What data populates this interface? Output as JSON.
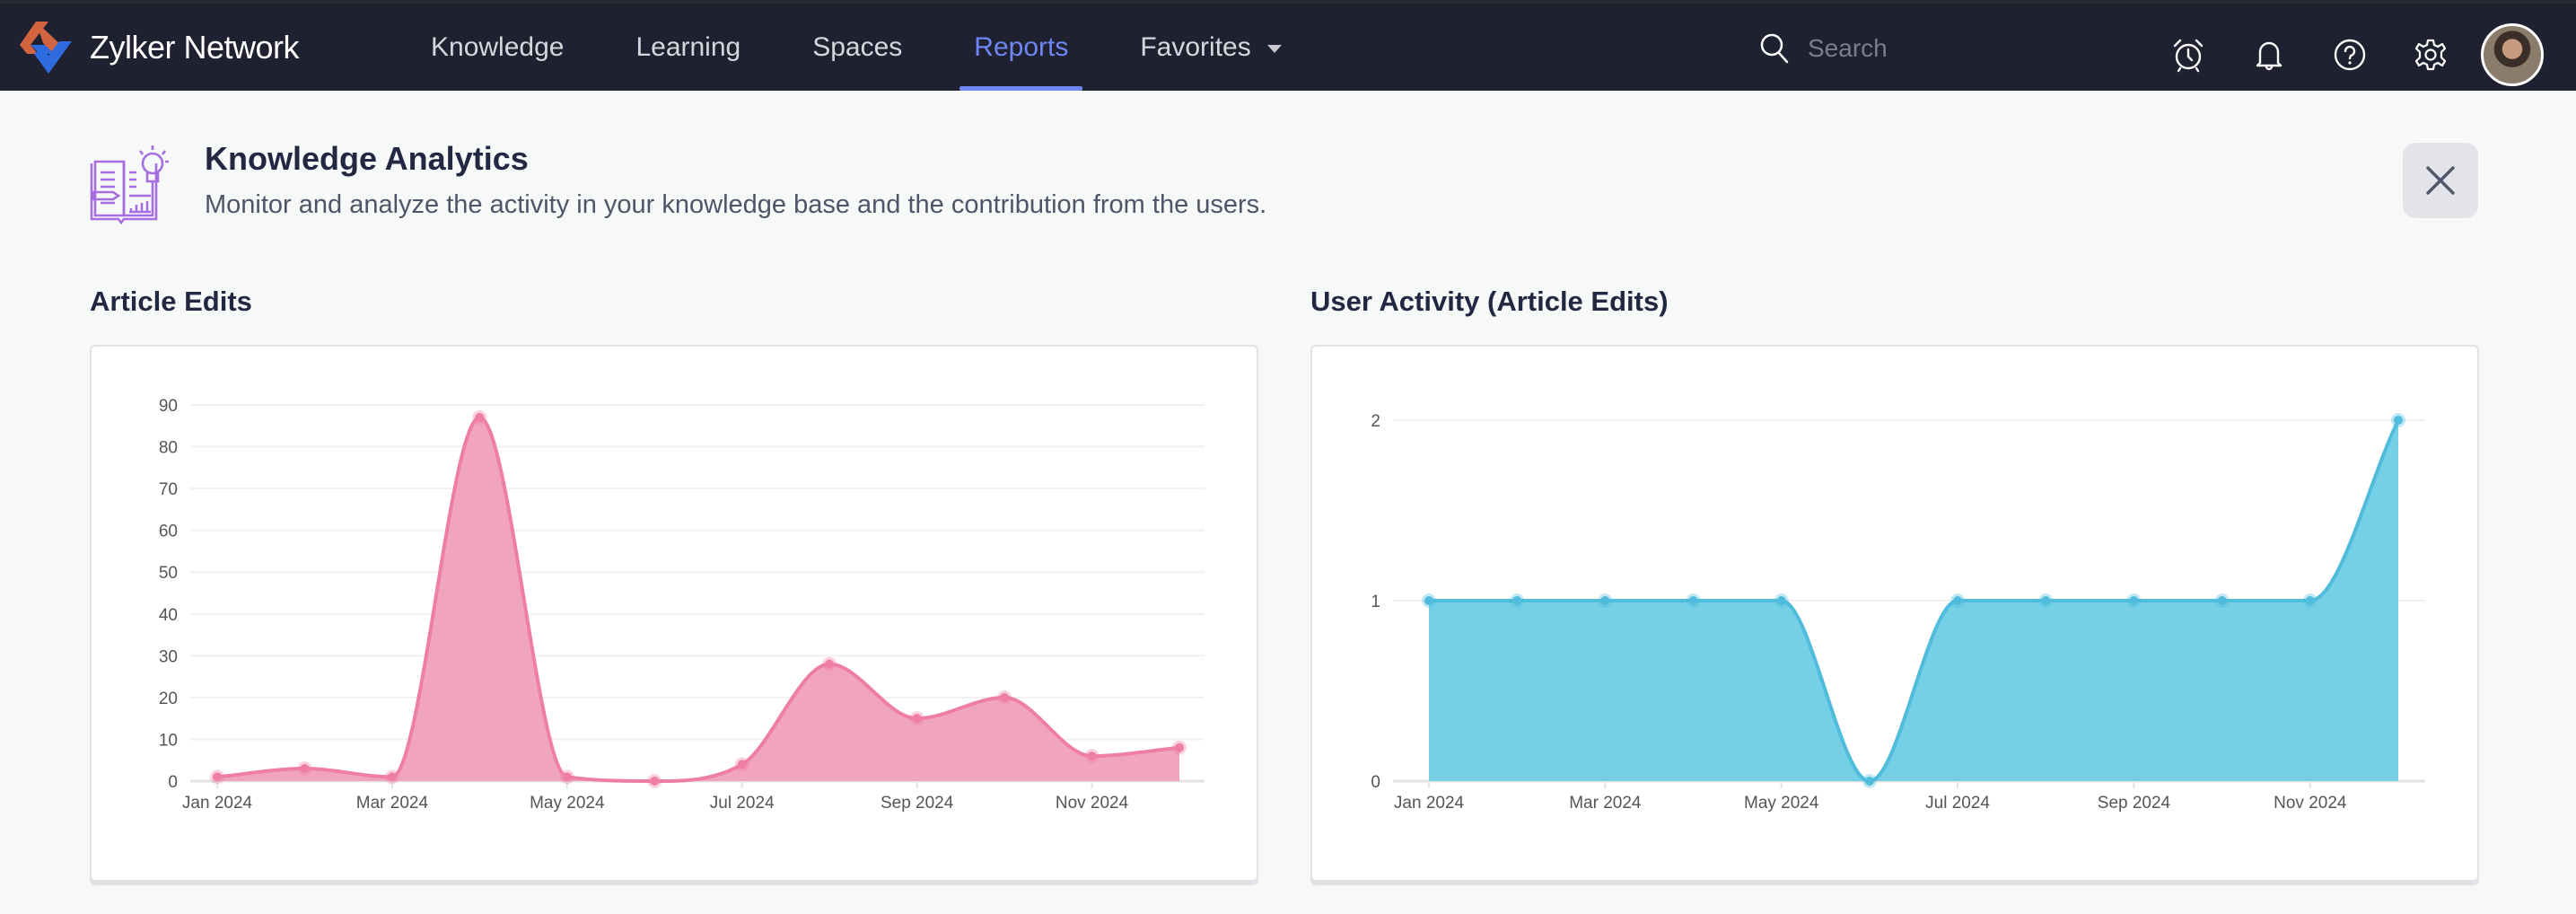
{
  "app": {
    "brand_name": "Zylker Network",
    "accent_color": "#6e87f3"
  },
  "nav": {
    "items": [
      {
        "label": "Knowledge",
        "active": false
      },
      {
        "label": "Learning",
        "active": false
      },
      {
        "label": "Spaces",
        "active": false
      },
      {
        "label": "Reports",
        "active": true
      },
      {
        "label": "Favorites",
        "active": false,
        "dropdown": true
      }
    ]
  },
  "search": {
    "placeholder": "Search",
    "value": ""
  },
  "header_icons": [
    "alarm-clock-icon",
    "bell-icon",
    "help-icon",
    "gear-icon",
    "avatar"
  ],
  "page": {
    "title": "Knowledge Analytics",
    "subtitle": "Monitor and analyze the activity in your knowledge base and the contribution from the users.",
    "close_icon": "close-icon"
  },
  "chart_data": [
    {
      "id": "article-edits",
      "type": "area",
      "title": "Article Edits",
      "xlabel": "",
      "ylabel": "",
      "color": "#ee7fa3",
      "fill": "#f1a5bd",
      "x": [
        "Jan 2024",
        "Feb 2024",
        "Mar 2024",
        "Apr 2024",
        "May 2024",
        "Jun 2024",
        "Jul 2024",
        "Aug 2024",
        "Sep 2024",
        "Oct 2024",
        "Nov 2024",
        "Dec 2024"
      ],
      "x_tick_labels": [
        "Jan 2024",
        "Mar 2024",
        "May 2024",
        "Jul 2024",
        "Sep 2024",
        "Nov 2024"
      ],
      "values": [
        1,
        3,
        1,
        87,
        1,
        0,
        4,
        28,
        15,
        20,
        6,
        8
      ],
      "ylim": [
        0,
        90
      ],
      "y_ticks": [
        0,
        10,
        20,
        30,
        40,
        50,
        60,
        70,
        80,
        90
      ],
      "grid": true,
      "legend": "none"
    },
    {
      "id": "user-activity",
      "type": "area",
      "title": "User Activity (Article Edits)",
      "xlabel": "",
      "ylabel": "",
      "color": "#4fbcdc",
      "fill": "#76d0e5",
      "x": [
        "Jan 2024",
        "Feb 2024",
        "Mar 2024",
        "Apr 2024",
        "May 2024",
        "Jun 2024",
        "Jul 2024",
        "Aug 2024",
        "Sep 2024",
        "Oct 2024",
        "Nov 2024",
        "Dec 2024"
      ],
      "x_tick_labels": [
        "Jan 2024",
        "Mar 2024",
        "May 2024",
        "Jul 2024",
        "Sep 2024",
        "Nov 2024"
      ],
      "values": [
        1,
        1,
        1,
        1,
        1,
        0,
        1,
        1,
        1,
        1,
        1,
        2
      ],
      "ylim": [
        0,
        2
      ],
      "y_ticks": [
        0,
        1,
        2
      ],
      "grid": true,
      "legend": "none"
    }
  ]
}
